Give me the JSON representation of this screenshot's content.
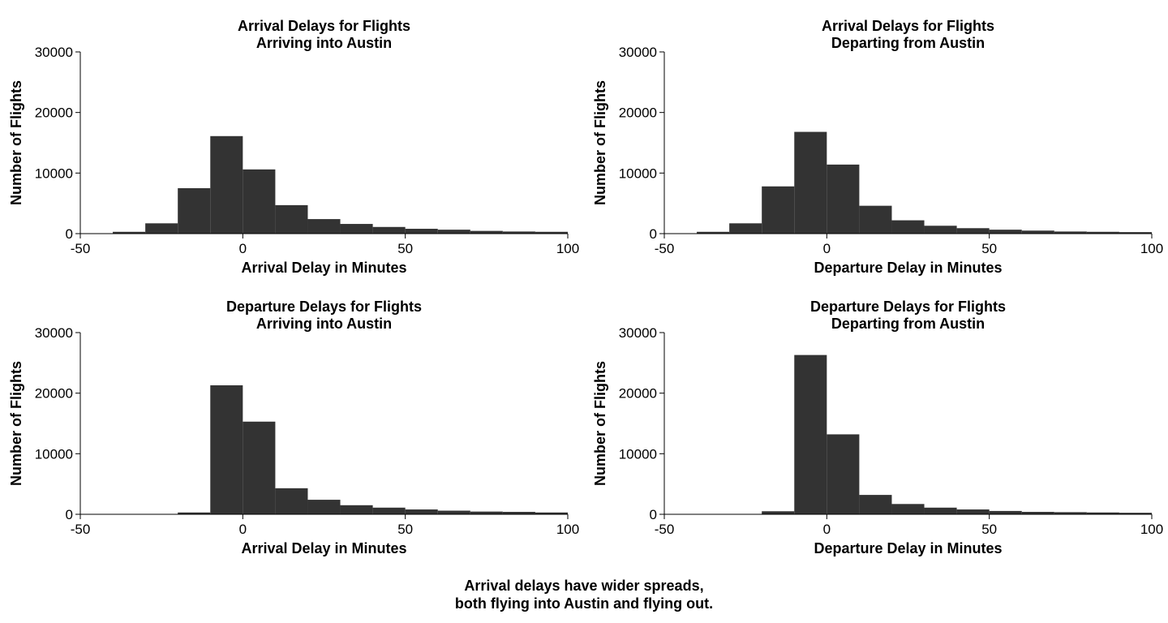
{
  "caption": {
    "line1": "Arrival delays have wider spreads,",
    "line2": "both flying into Austin and flying out."
  },
  "colors": {
    "bar": "#333333",
    "axis": "#000000",
    "background": "#ffffff"
  },
  "chart_data": [
    {
      "type": "bar",
      "title": [
        "Arrival Delays for Flights",
        "Arriving into Austin"
      ],
      "xlabel": "Arrival Delay in Minutes",
      "ylabel": "Number of Flights",
      "xlim": [
        -50,
        100
      ],
      "ylim": [
        0,
        30000
      ],
      "xticks": [
        "-50",
        "0",
        "50",
        "100"
      ],
      "yticks": [
        "0",
        "10000",
        "20000",
        "30000"
      ],
      "bin_width": 10,
      "bins": [
        {
          "x0": -50,
          "x1": -40,
          "value": 60
        },
        {
          "x0": -40,
          "x1": -30,
          "value": 300
        },
        {
          "x0": -30,
          "x1": -20,
          "value": 1700
        },
        {
          "x0": -20,
          "x1": -10,
          "value": 7500
        },
        {
          "x0": -10,
          "x1": 0,
          "value": 16100
        },
        {
          "x0": 0,
          "x1": 10,
          "value": 10600
        },
        {
          "x0": 10,
          "x1": 20,
          "value": 4700
        },
        {
          "x0": 20,
          "x1": 30,
          "value": 2400
        },
        {
          "x0": 30,
          "x1": 40,
          "value": 1600
        },
        {
          "x0": 40,
          "x1": 50,
          "value": 1100
        },
        {
          "x0": 50,
          "x1": 60,
          "value": 800
        },
        {
          "x0": 60,
          "x1": 70,
          "value": 650
        },
        {
          "x0": 70,
          "x1": 80,
          "value": 450
        },
        {
          "x0": 80,
          "x1": 90,
          "value": 350
        },
        {
          "x0": 90,
          "x1": 100,
          "value": 300
        }
      ]
    },
    {
      "type": "bar",
      "title": [
        "Arrival Delays for Flights",
        "Departing from Austin"
      ],
      "xlabel": "Departure Delay in Minutes",
      "ylabel": "Number of Flights",
      "xlim": [
        -50,
        100
      ],
      "ylim": [
        0,
        30000
      ],
      "xticks": [
        "-50",
        "0",
        "50",
        "100"
      ],
      "yticks": [
        "0",
        "10000",
        "20000",
        "30000"
      ],
      "bin_width": 10,
      "bins": [
        {
          "x0": -50,
          "x1": -40,
          "value": 60
        },
        {
          "x0": -40,
          "x1": -30,
          "value": 300
        },
        {
          "x0": -30,
          "x1": -20,
          "value": 1700
        },
        {
          "x0": -20,
          "x1": -10,
          "value": 7800
        },
        {
          "x0": -10,
          "x1": 0,
          "value": 16800
        },
        {
          "x0": 0,
          "x1": 10,
          "value": 11400
        },
        {
          "x0": 10,
          "x1": 20,
          "value": 4600
        },
        {
          "x0": 20,
          "x1": 30,
          "value": 2200
        },
        {
          "x0": 30,
          "x1": 40,
          "value": 1300
        },
        {
          "x0": 40,
          "x1": 50,
          "value": 900
        },
        {
          "x0": 50,
          "x1": 60,
          "value": 650
        },
        {
          "x0": 60,
          "x1": 70,
          "value": 500
        },
        {
          "x0": 70,
          "x1": 80,
          "value": 350
        },
        {
          "x0": 80,
          "x1": 90,
          "value": 300
        },
        {
          "x0": 90,
          "x1": 100,
          "value": 250
        }
      ]
    },
    {
      "type": "bar",
      "title": [
        "Departure Delays for Flights",
        "Arriving into Austin"
      ],
      "xlabel": "Arrival Delay in Minutes",
      "ylabel": "Number of Flights",
      "xlim": [
        -50,
        100
      ],
      "ylim": [
        0,
        30000
      ],
      "xticks": [
        "-50",
        "0",
        "50",
        "100"
      ],
      "yticks": [
        "0",
        "10000",
        "20000",
        "30000"
      ],
      "bin_width": 10,
      "bins": [
        {
          "x0": -50,
          "x1": -40,
          "value": 0
        },
        {
          "x0": -40,
          "x1": -30,
          "value": 0
        },
        {
          "x0": -30,
          "x1": -20,
          "value": 30
        },
        {
          "x0": -20,
          "x1": -10,
          "value": 300
        },
        {
          "x0": -10,
          "x1": 0,
          "value": 21300
        },
        {
          "x0": 0,
          "x1": 10,
          "value": 15300
        },
        {
          "x0": 10,
          "x1": 20,
          "value": 4300
        },
        {
          "x0": 20,
          "x1": 30,
          "value": 2400
        },
        {
          "x0": 30,
          "x1": 40,
          "value": 1500
        },
        {
          "x0": 40,
          "x1": 50,
          "value": 1100
        },
        {
          "x0": 50,
          "x1": 60,
          "value": 800
        },
        {
          "x0": 60,
          "x1": 70,
          "value": 600
        },
        {
          "x0": 70,
          "x1": 80,
          "value": 450
        },
        {
          "x0": 80,
          "x1": 90,
          "value": 400
        },
        {
          "x0": 90,
          "x1": 100,
          "value": 300
        }
      ]
    },
    {
      "type": "bar",
      "title": [
        "Departure Delays for Flights",
        "Departing from Austin"
      ],
      "xlabel": "Departure Delay in Minutes",
      "ylabel": "Number of Flights",
      "xlim": [
        -50,
        100
      ],
      "ylim": [
        0,
        30000
      ],
      "xticks": [
        "-50",
        "0",
        "50",
        "100"
      ],
      "yticks": [
        "0",
        "10000",
        "20000",
        "30000"
      ],
      "bin_width": 10,
      "bins": [
        {
          "x0": -50,
          "x1": -40,
          "value": 0
        },
        {
          "x0": -40,
          "x1": -30,
          "value": 0
        },
        {
          "x0": -30,
          "x1": -20,
          "value": 30
        },
        {
          "x0": -20,
          "x1": -10,
          "value": 500
        },
        {
          "x0": -10,
          "x1": 0,
          "value": 26300
        },
        {
          "x0": 0,
          "x1": 10,
          "value": 13200
        },
        {
          "x0": 10,
          "x1": 20,
          "value": 3200
        },
        {
          "x0": 20,
          "x1": 30,
          "value": 1700
        },
        {
          "x0": 30,
          "x1": 40,
          "value": 1100
        },
        {
          "x0": 40,
          "x1": 50,
          "value": 800
        },
        {
          "x0": 50,
          "x1": 60,
          "value": 550
        },
        {
          "x0": 60,
          "x1": 70,
          "value": 400
        },
        {
          "x0": 70,
          "x1": 80,
          "value": 350
        },
        {
          "x0": 80,
          "x1": 90,
          "value": 300
        },
        {
          "x0": 90,
          "x1": 100,
          "value": 250
        }
      ]
    }
  ]
}
